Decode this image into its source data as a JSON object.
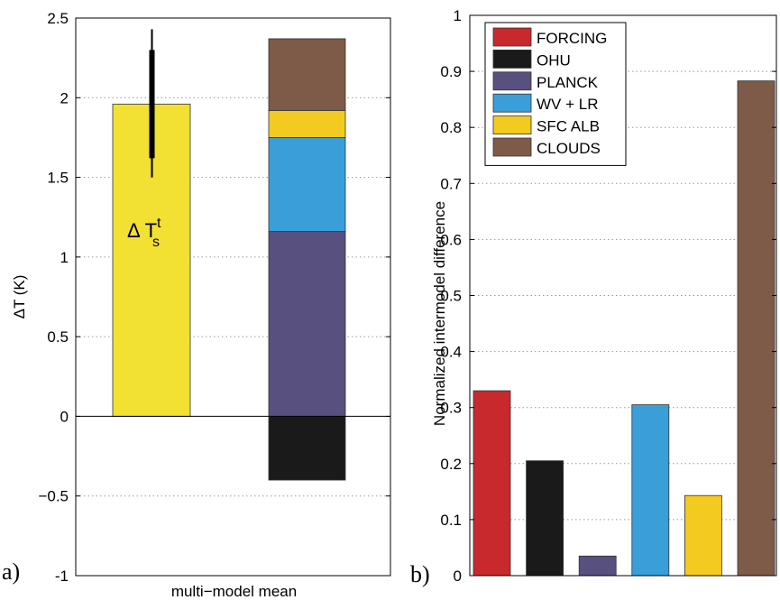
{
  "chart_data": [
    {
      "type": "bar",
      "panel_label": "a)",
      "xlabel": "multi−model mean",
      "ylabel": "ΔT (K)",
      "ylim": [
        -1,
        2.5
      ],
      "yticks": [
        -1,
        -0.5,
        0,
        0.5,
        1,
        1.5,
        2,
        2.5
      ],
      "ytick_labels": [
        "-1",
        "−0.5",
        "0",
        "0.5",
        "1",
        "1.5",
        "2",
        "2.5"
      ],
      "grid": "horizontal dotted",
      "total_bar": {
        "value": 1.96,
        "color": "#f2e033",
        "label_main": "Δ T",
        "label_sup": "t",
        "label_sub": "s",
        "error_bar": {
          "thick_low": 1.62,
          "thick_high": 2.3,
          "thin_low": 1.5,
          "thin_high": 2.43
        }
      },
      "stacked_bar": [
        {
          "name": "OHU",
          "from": -0.4,
          "to": 0,
          "color": "#1a1a1a"
        },
        {
          "name": "PLANCK",
          "from": 0,
          "to": 1.16,
          "color": "#58507e"
        },
        {
          "name": "WV + LR",
          "from": 1.16,
          "to": 1.75,
          "color": "#3a9fd8"
        },
        {
          "name": "SFC ALB",
          "from": 1.75,
          "to": 1.92,
          "color": "#f3ca1f"
        },
        {
          "name": "CLOUDS",
          "from": 1.92,
          "to": 2.37,
          "color": "#7e5a48"
        }
      ]
    },
    {
      "type": "bar",
      "panel_label": "b)",
      "ylabel": "Normalized intermodel difference",
      "ylim": [
        0,
        1
      ],
      "yticks": [
        0,
        0.1,
        0.2,
        0.3,
        0.4,
        0.5,
        0.6,
        0.7,
        0.8,
        0.9,
        1
      ],
      "ytick_labels": [
        "0",
        "0.1",
        "0.2",
        "0.3",
        "0.4",
        "0.5",
        "0.6",
        "0.7",
        "0.8",
        "0.9",
        "1"
      ],
      "grid": "horizontal dotted",
      "legend_position": "top-left",
      "categories": [
        "FORCING",
        "OHU",
        "PLANCK",
        "WV + LR",
        "SFC ALB",
        "CLOUDS"
      ],
      "values": [
        0.33,
        0.205,
        0.035,
        0.305,
        0.143,
        0.883
      ],
      "colors": [
        "#c8292c",
        "#1a1a1a",
        "#58507e",
        "#3a9fd8",
        "#f3ca1f",
        "#7e5a48"
      ]
    }
  ]
}
